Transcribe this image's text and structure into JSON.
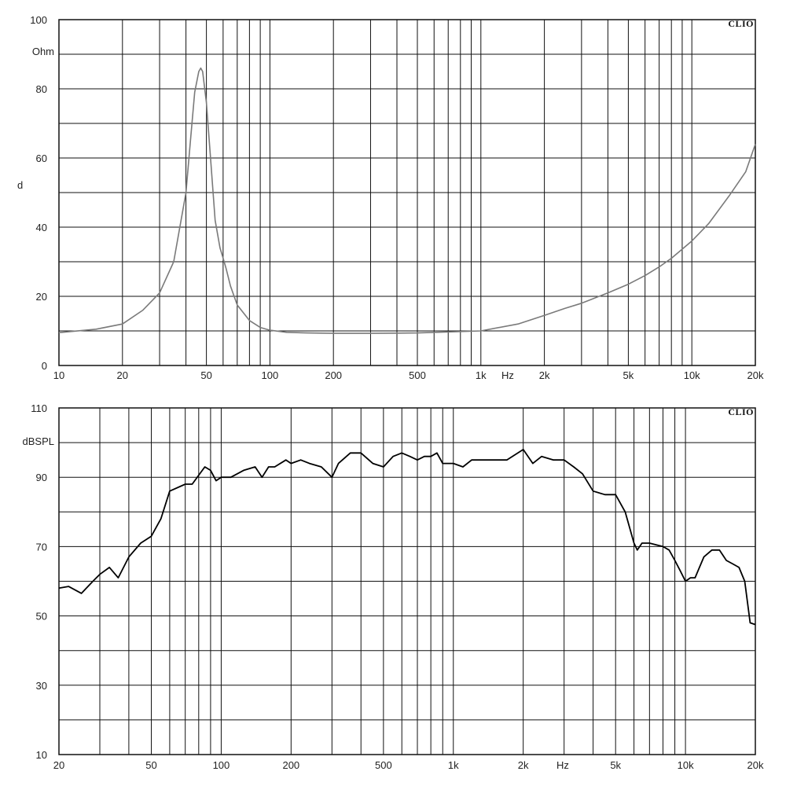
{
  "chart_data": [
    {
      "type": "line",
      "brand": "CLIO",
      "x_scale": "log",
      "xlim": [
        10,
        20000
      ],
      "ylim": [
        0,
        100
      ],
      "ylabel": "Ohm",
      "yunit_mark": "d",
      "xunit": "Hz",
      "x_ticks": [
        {
          "value": 10,
          "label": "10"
        },
        {
          "value": 20,
          "label": "20"
        },
        {
          "value": 50,
          "label": "50"
        },
        {
          "value": 100,
          "label": "100"
        },
        {
          "value": 200,
          "label": "200"
        },
        {
          "value": 500,
          "label": "500"
        },
        {
          "value": 1000,
          "label": "1k"
        },
        {
          "value": 2000,
          "label": "2k"
        },
        {
          "value": 5000,
          "label": "5k"
        },
        {
          "value": 10000,
          "label": "10k"
        },
        {
          "value": 20000,
          "label": "20k"
        }
      ],
      "y_ticks": [
        {
          "value": 0,
          "label": "0"
        },
        {
          "value": 20,
          "label": "20"
        },
        {
          "value": 40,
          "label": "40"
        },
        {
          "value": 60,
          "label": "60"
        },
        {
          "value": 80,
          "label": "80"
        },
        {
          "value": 100,
          "label": "100"
        }
      ],
      "grid": true,
      "line_color": "#7a7a7a",
      "series": [
        {
          "x": [
            10,
            15,
            20,
            25,
            30,
            35,
            40,
            42,
            44,
            46,
            47,
            48,
            50,
            52,
            55,
            58,
            60,
            62,
            65,
            70,
            80,
            90,
            100,
            120,
            150,
            200,
            300,
            500,
            700,
            1000,
            1500,
            2000,
            2500,
            3000,
            4000,
            5000,
            6000,
            7000,
            8000,
            10000,
            12000,
            15000,
            18000,
            20000
          ],
          "y": [
            9.5,
            10.5,
            12,
            16,
            21,
            30,
            50,
            65,
            79,
            85,
            86,
            85,
            76,
            62,
            42,
            34,
            31,
            28,
            23,
            17.5,
            13,
            11,
            10.2,
            9.6,
            9.4,
            9.3,
            9.3,
            9.4,
            9.7,
            10,
            12,
            14.5,
            16.5,
            18,
            21,
            23.5,
            26,
            28.5,
            31,
            36,
            41,
            49,
            56,
            64
          ]
        }
      ]
    },
    {
      "type": "line",
      "brand": "CLIO",
      "x_scale": "log",
      "xlim": [
        20,
        20000
      ],
      "ylim": [
        10,
        110
      ],
      "ylabel": "dBSPL",
      "xunit": "Hz",
      "x_ticks": [
        {
          "value": 20,
          "label": "20"
        },
        {
          "value": 50,
          "label": "50"
        },
        {
          "value": 100,
          "label": "100"
        },
        {
          "value": 200,
          "label": "200"
        },
        {
          "value": 500,
          "label": "500"
        },
        {
          "value": 1000,
          "label": "1k"
        },
        {
          "value": 2000,
          "label": "2k"
        },
        {
          "value": 5000,
          "label": "5k"
        },
        {
          "value": 10000,
          "label": "10k"
        },
        {
          "value": 20000,
          "label": "20k"
        }
      ],
      "y_ticks": [
        {
          "value": 10,
          "label": "10"
        },
        {
          "value": 30,
          "label": "30"
        },
        {
          "value": 50,
          "label": "50"
        },
        {
          "value": 70,
          "label": "70"
        },
        {
          "value": 90,
          "label": "90"
        },
        {
          "value": 110,
          "label": "110"
        }
      ],
      "grid": true,
      "line_color": "#000000",
      "series": [
        {
          "x": [
            20,
            22,
            25,
            28,
            30,
            33,
            36,
            40,
            45,
            50,
            55,
            60,
            70,
            75,
            85,
            90,
            95,
            100,
            110,
            125,
            140,
            150,
            160,
            170,
            190,
            200,
            220,
            240,
            270,
            300,
            320,
            360,
            400,
            450,
            500,
            550,
            600,
            650,
            700,
            750,
            800,
            850,
            900,
            950,
            1000,
            1100,
            1200,
            1400,
            1700,
            2000,
            2200,
            2400,
            2700,
            3000,
            3300,
            3600,
            4000,
            4500,
            5000,
            5500,
            6000,
            6200,
            6500,
            7000,
            8000,
            8500,
            9000,
            9500,
            10000,
            10500,
            11000,
            12000,
            13000,
            14000,
            15000,
            16000,
            17000,
            18000,
            19000,
            20000
          ],
          "y": [
            58,
            58.5,
            56.5,
            60,
            62,
            64,
            61,
            67,
            71,
            73,
            78,
            86,
            88,
            88,
            93,
            92,
            89,
            90,
            90,
            92,
            93,
            90,
            93,
            93,
            95,
            94,
            95,
            94,
            93,
            90,
            94,
            97,
            97,
            94,
            93,
            96,
            97,
            96,
            95,
            96,
            96,
            97,
            94,
            94,
            94,
            93,
            95,
            95,
            95,
            98,
            94,
            96,
            95,
            95,
            93,
            91,
            86,
            85,
            85,
            80,
            71,
            69,
            71,
            71,
            70,
            69,
            66,
            63,
            60,
            61,
            61,
            67,
            69,
            69,
            66,
            65,
            64,
            60,
            48,
            47.5
          ]
        }
      ]
    }
  ]
}
